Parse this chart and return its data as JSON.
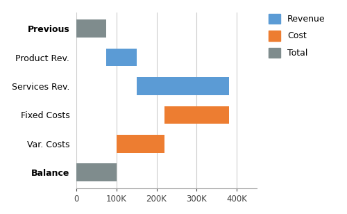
{
  "categories": [
    "Previous",
    "Product Rev.",
    "Services Rev.",
    "Fixed Costs",
    "Var. Costs",
    "Balance"
  ],
  "bold_labels": [
    "Previous",
    "Balance"
  ],
  "bar_types": [
    "total",
    "revenue",
    "revenue",
    "cost",
    "cost",
    "total"
  ],
  "bar_starts": [
    0,
    75000,
    150000,
    220000,
    100000,
    0
  ],
  "bar_widths": [
    75000,
    75000,
    230000,
    160000,
    120000,
    100000
  ],
  "colors": {
    "revenue": "#5B9BD5",
    "cost": "#ED7D31",
    "total": "#7F8C8D"
  },
  "legend_labels": [
    "Revenue",
    "Cost",
    "Total"
  ],
  "legend_colors": [
    "#5B9BD5",
    "#ED7D31",
    "#7F8C8D"
  ],
  "xlim": [
    0,
    450000
  ],
  "xticks": [
    0,
    100000,
    200000,
    300000,
    400000
  ],
  "xticklabels": [
    "0",
    "100K",
    "200K",
    "300K",
    "400K"
  ],
  "background_color": "#ffffff",
  "grid_color": "#cccccc",
  "bar_height": 0.62,
  "figsize": [
    5.0,
    3.08
  ],
  "dpi": 100
}
